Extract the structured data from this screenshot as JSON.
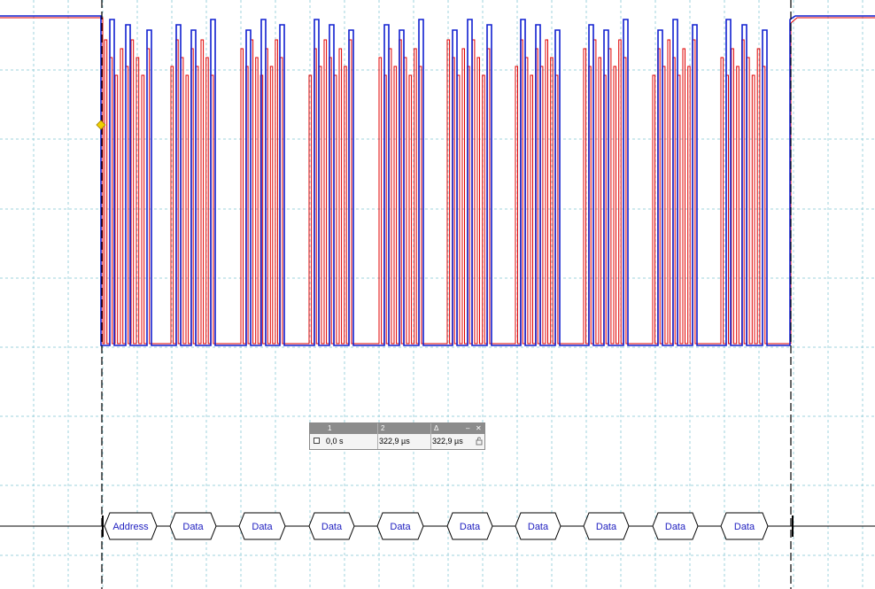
{
  "colors": {
    "sda_trace": "#e00000",
    "scl_trace": "#1020d0",
    "grid": "#9fd3de",
    "bus_text": "#2020c0",
    "bus_outline": "#000000",
    "cursor_marker": "#f0d000"
  },
  "icons": {
    "minimize": "minimize-icon",
    "close": "close-icon",
    "lock": "lock-icon"
  },
  "cursor_table": {
    "col1_header": "1",
    "col2_header": "2",
    "delta_header": "Δ",
    "minimize_glyph": "–",
    "close_glyph": "✕",
    "cursor1_value": "0,0 s",
    "cursor2_value": "322,9 µs",
    "delta_value": "322,9 µs"
  },
  "bus": {
    "frames": [
      "Address",
      "Data",
      "Data",
      "Data",
      "Data",
      "Data",
      "Data",
      "Data",
      "Data",
      "Data"
    ]
  }
}
